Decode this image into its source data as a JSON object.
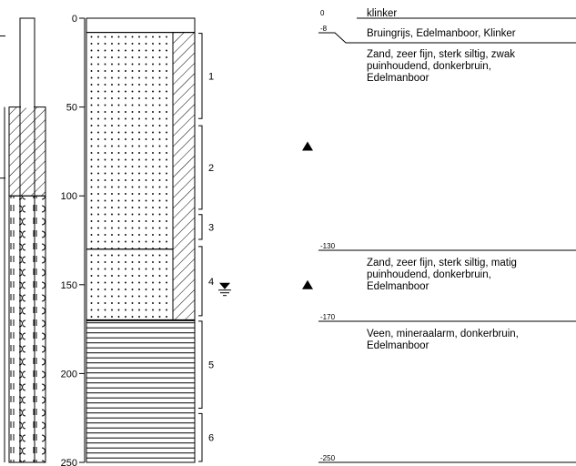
{
  "scale": {
    "max_depth": 250,
    "ticks": [
      {
        "label": "0",
        "depth": 0
      },
      {
        "label": "50",
        "depth": 50
      },
      {
        "label": "100",
        "depth": 100
      },
      {
        "label": "150",
        "depth": 150
      },
      {
        "label": "200",
        "depth": 200
      },
      {
        "label": "250",
        "depth": 250
      }
    ]
  },
  "boring": {
    "pattern": [
      {
        "from": 0,
        "to": 8,
        "pattern": "blank"
      },
      {
        "from": 8,
        "to": 130,
        "pattern": "dots"
      },
      {
        "from": 130,
        "to": 170,
        "pattern": "dots"
      },
      {
        "from": 170,
        "to": 250,
        "pattern": "horizontal-lines"
      }
    ],
    "hatch_column": {
      "from": 8,
      "to": 170
    }
  },
  "well": {
    "pipe_from": 0,
    "pipe_to": 250,
    "seal_from": 50,
    "seal_to": 100,
    "filter_from": 100,
    "filter_to": 250
  },
  "samples": [
    {
      "label": "1",
      "from": 8,
      "to": 57
    },
    {
      "label": "2",
      "from": 60,
      "to": 108
    },
    {
      "label": "3",
      "from": 110,
      "to": 125
    },
    {
      "label": "4",
      "from": 128,
      "to": 168
    },
    {
      "label": "5",
      "from": 170,
      "to": 220
    },
    {
      "label": "6",
      "from": 222,
      "to": 250
    }
  ],
  "groundwater_level_depth": 152,
  "markers": [
    {
      "depth": 72
    },
    {
      "depth": 150
    }
  ],
  "layers": [
    {
      "depth_label": "0",
      "depth": 0,
      "description": [
        "klinker"
      ]
    },
    {
      "depth_label": "-8",
      "depth": 8,
      "description": [
        "Bruingrijs, Edelmanboor, Klinker"
      ]
    },
    {
      "depth_label": "",
      "depth": 8,
      "description": [
        "Zand, zeer fijn, sterk siltig, zwak",
        "puinhoudend, donkerbruin,",
        "Edelmanboor"
      ]
    },
    {
      "depth_label": "-130",
      "depth": 130,
      "description": [
        "Zand, zeer fijn, sterk siltig, matig",
        "puinhoudend, donkerbruin,",
        "Edelmanboor"
      ]
    },
    {
      "depth_label": "-170",
      "depth": 170,
      "description": [
        "Veen, mineraalarm, donkerbruin,",
        "Edelmanboor"
      ]
    },
    {
      "depth_label": "-250",
      "depth": 250,
      "description": []
    }
  ],
  "colors": {
    "ink": "#000000",
    "paper": "#ffffff"
  }
}
